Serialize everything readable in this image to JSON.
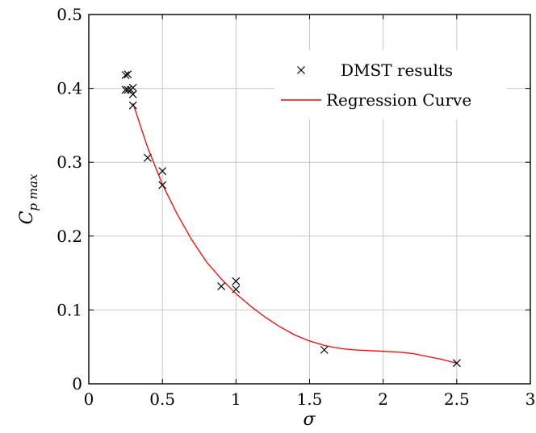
{
  "chart_data": {
    "type": "scatter",
    "xlabel": "σ",
    "ylabel": {
      "main": "C",
      "sub": "p max"
    },
    "xlim": [
      0,
      3
    ],
    "ylim": [
      0,
      0.5
    ],
    "grid": true,
    "legend_position": "top-right",
    "x_ticks": [
      0,
      0.5,
      1,
      1.5,
      2,
      2.5,
      3
    ],
    "x_tick_labels": [
      "0",
      "0.5",
      "1",
      "1.5",
      "2",
      "2.5",
      "3"
    ],
    "y_ticks": [
      0,
      0.1,
      0.2,
      0.3,
      0.4,
      0.5
    ],
    "y_tick_labels": [
      "0",
      "0.1",
      "0.2",
      "0.3",
      "0.4",
      "0.5"
    ],
    "series": [
      {
        "name": "DMST results",
        "kind": "markers",
        "marker": "x",
        "color": "#000000",
        "points": [
          {
            "x": 0.25,
            "y": 0.418
          },
          {
            "x": 0.265,
            "y": 0.419
          },
          {
            "x": 0.25,
            "y": 0.398
          },
          {
            "x": 0.265,
            "y": 0.398
          },
          {
            "x": 0.285,
            "y": 0.398
          },
          {
            "x": 0.3,
            "y": 0.401
          },
          {
            "x": 0.3,
            "y": 0.392
          },
          {
            "x": 0.3,
            "y": 0.377
          },
          {
            "x": 0.4,
            "y": 0.306
          },
          {
            "x": 0.5,
            "y": 0.288
          },
          {
            "x": 0.5,
            "y": 0.269
          },
          {
            "x": 0.9,
            "y": 0.132
          },
          {
            "x": 1.0,
            "y": 0.139
          },
          {
            "x": 1.0,
            "y": 0.128
          },
          {
            "x": 1.6,
            "y": 0.046
          },
          {
            "x": 2.5,
            "y": 0.028
          }
        ]
      },
      {
        "name": "Regression Curve",
        "kind": "line",
        "color": "#ff0000",
        "points": [
          {
            "x": 0.3,
            "y": 0.38
          },
          {
            "x": 0.4,
            "y": 0.32
          },
          {
            "x": 0.5,
            "y": 0.27
          },
          {
            "x": 0.6,
            "y": 0.23
          },
          {
            "x": 0.7,
            "y": 0.195
          },
          {
            "x": 0.8,
            "y": 0.165
          },
          {
            "x": 0.9,
            "y": 0.142
          },
          {
            "x": 1.0,
            "y": 0.122
          },
          {
            "x": 1.1,
            "y": 0.105
          },
          {
            "x": 1.2,
            "y": 0.09
          },
          {
            "x": 1.3,
            "y": 0.077
          },
          {
            "x": 1.4,
            "y": 0.066
          },
          {
            "x": 1.5,
            "y": 0.058
          },
          {
            "x": 1.6,
            "y": 0.052
          },
          {
            "x": 1.7,
            "y": 0.048
          },
          {
            "x": 1.8,
            "y": 0.046
          },
          {
            "x": 1.9,
            "y": 0.045
          },
          {
            "x": 2.0,
            "y": 0.044
          },
          {
            "x": 2.1,
            "y": 0.043
          },
          {
            "x": 2.2,
            "y": 0.041
          },
          {
            "x": 2.3,
            "y": 0.037
          },
          {
            "x": 2.4,
            "y": 0.033
          },
          {
            "x": 2.5,
            "y": 0.028
          }
        ]
      }
    ]
  }
}
